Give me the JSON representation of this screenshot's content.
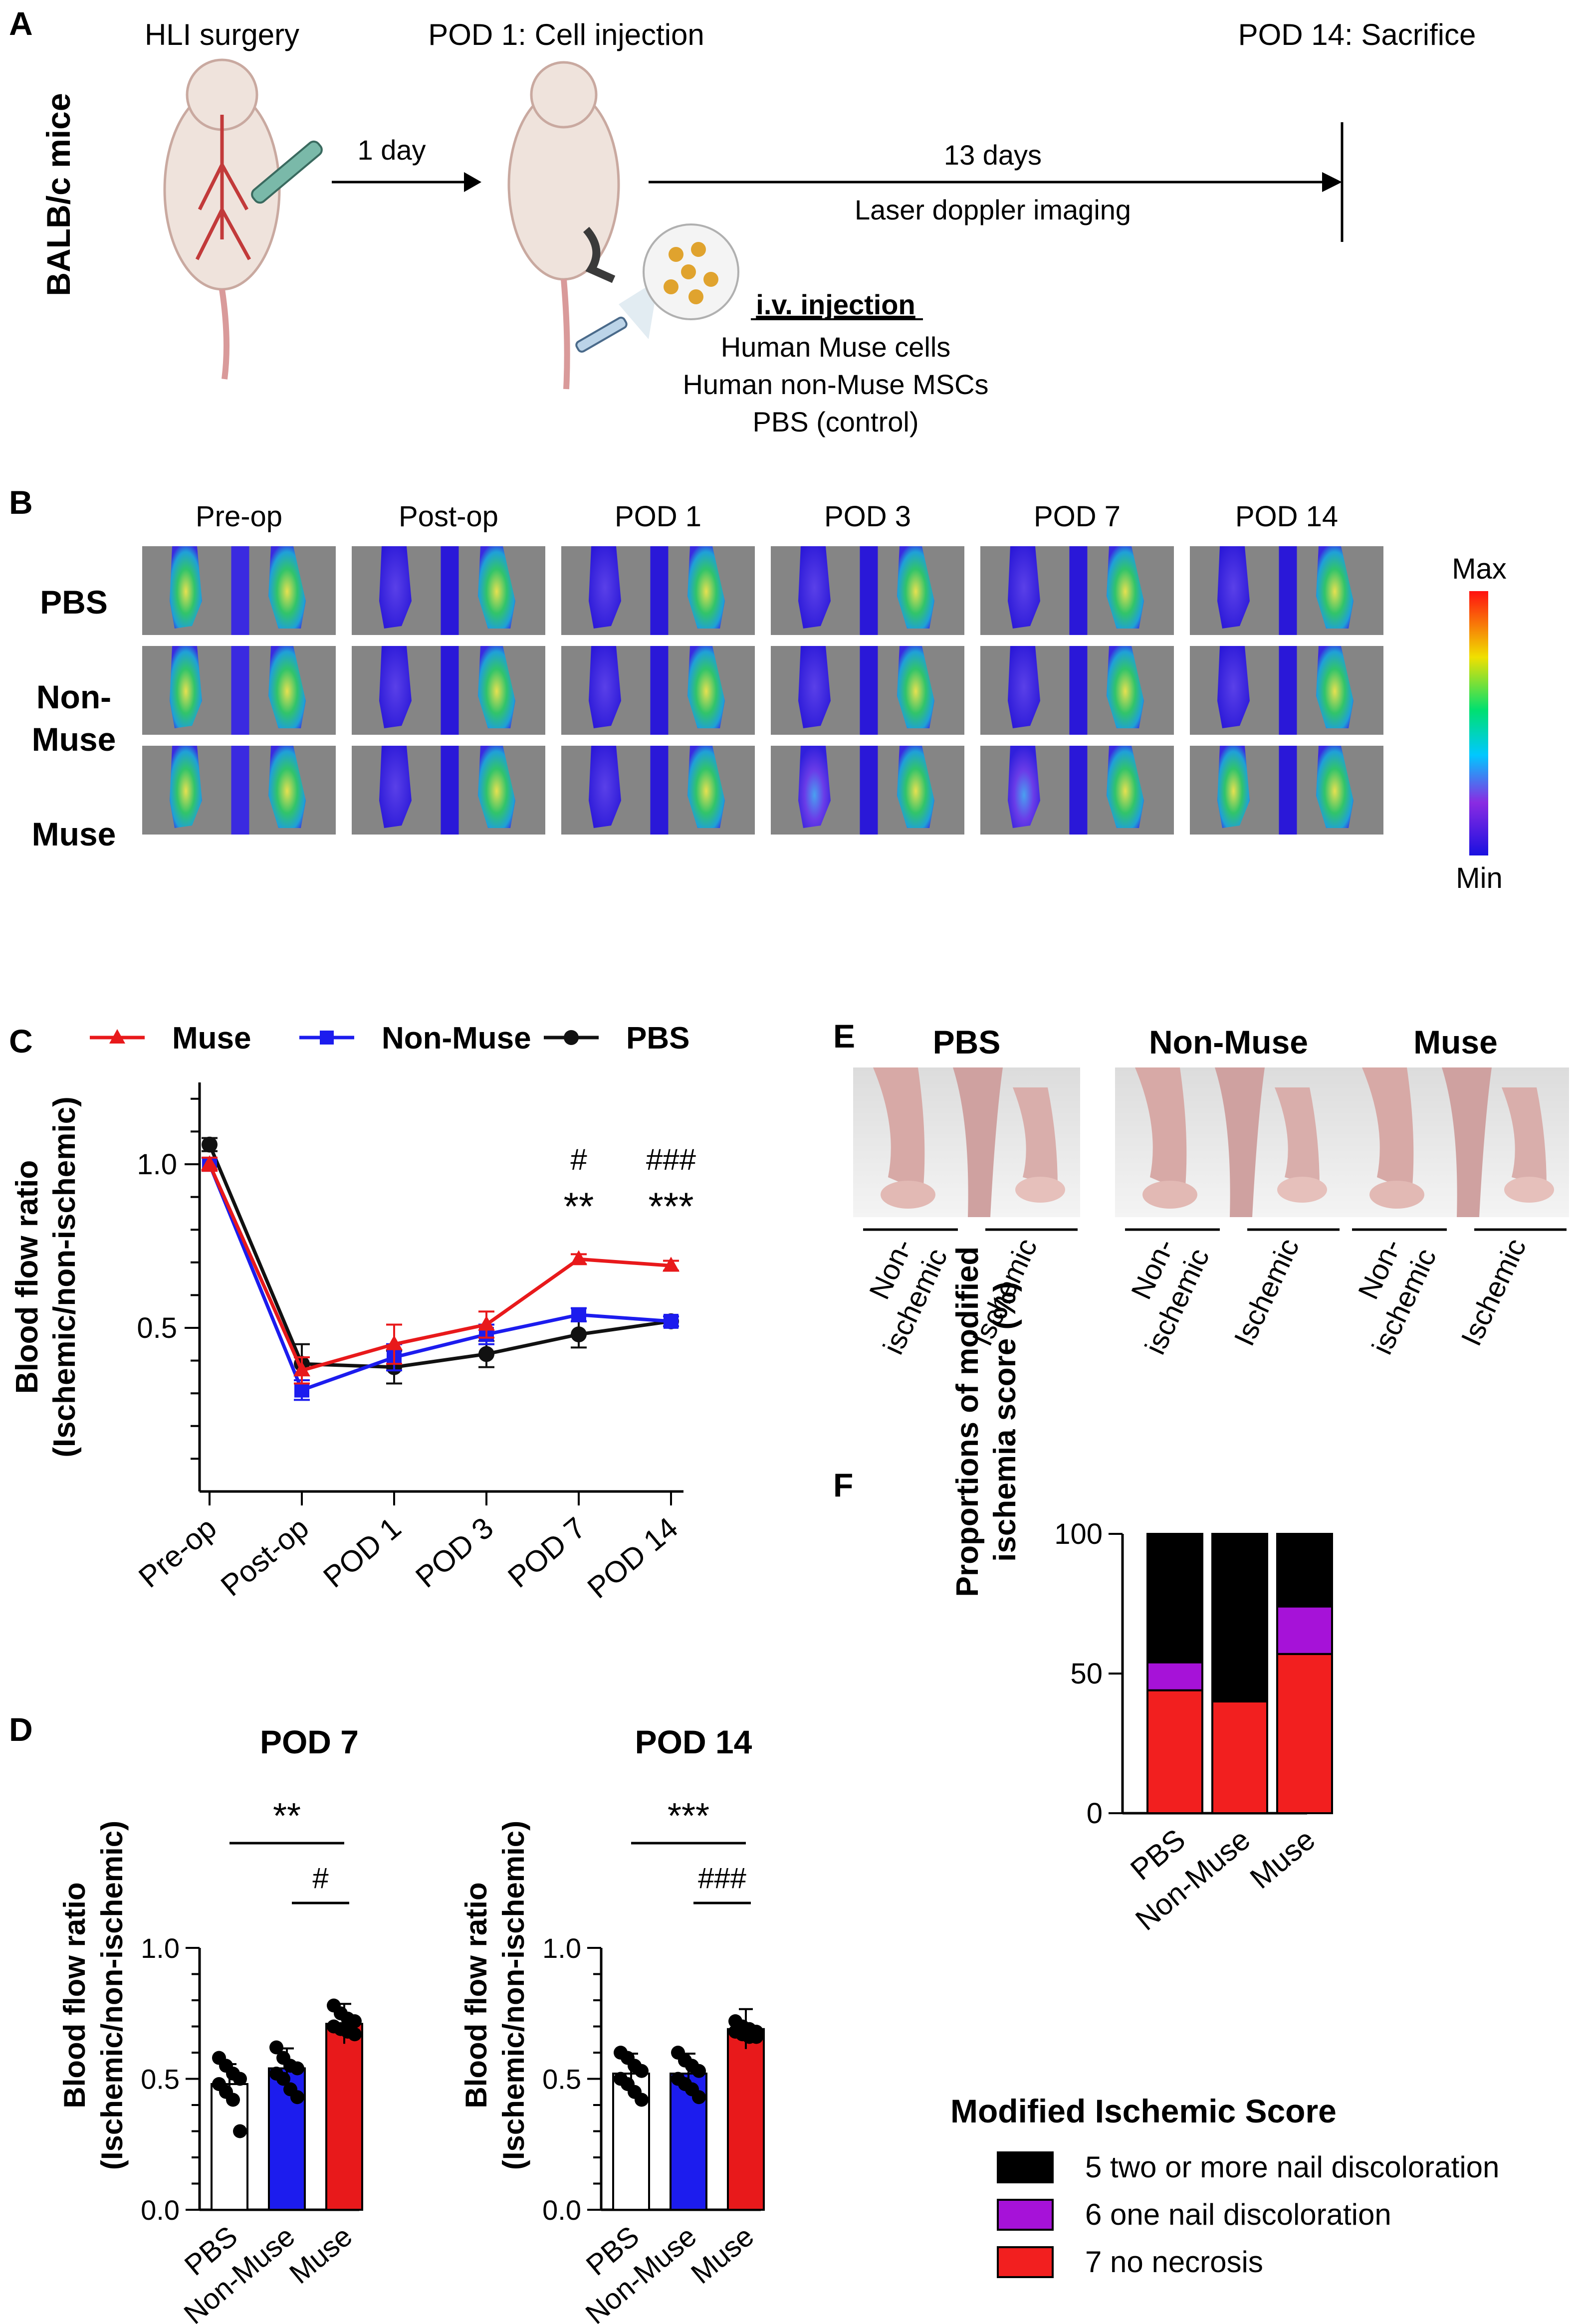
{
  "panelA": {
    "label": "A",
    "mice": "BALB/c mice",
    "steps": [
      "HLI surgery",
      "POD 1: Cell injection",
      "POD 14: Sacrifice"
    ],
    "interval1": "1 day",
    "interval2": "13 days",
    "imaging": "Laser doppler imaging",
    "injection_title": "i.v. injection",
    "injection_items": [
      "Human Muse cells",
      "Human non-Muse MSCs",
      "PBS (control)"
    ]
  },
  "panelB": {
    "label": "B",
    "columns": [
      "Pre-op",
      "Post-op",
      "POD 1",
      "POD 3",
      "POD 7",
      "POD 14"
    ],
    "rows": [
      "PBS",
      "Non-",
      "Muse",
      "Muse"
    ],
    "scale_max": "Max",
    "scale_min": "Min",
    "colors": {
      "low": "#2a1fe0",
      "mid": "#31c46a",
      "high": "#e8d43a",
      "bg": "#858585"
    }
  },
  "panelC": {
    "label": "C",
    "chart_data": {
      "type": "line",
      "categories": [
        "Pre-op",
        "Post-op",
        "POD 1",
        "POD 3",
        "POD 7",
        "POD 14"
      ],
      "ylabel_1": "Blood flow ratio",
      "ylabel_2": "(Ischemic/non-ischemic)",
      "ylim": [
        0,
        1.25
      ],
      "yticks": [
        "0.5",
        "1.0"
      ],
      "series": [
        {
          "name": "Muse",
          "color": "#e8191b",
          "values": [
            1.0,
            0.37,
            0.45,
            0.51,
            0.71,
            0.69
          ],
          "err": [
            0.02,
            0.04,
            0.06,
            0.04,
            0.015,
            0.015
          ]
        },
        {
          "name": "Non-Muse",
          "color": "#1c1cee",
          "values": [
            1.0,
            0.31,
            0.41,
            0.48,
            0.54,
            0.52
          ],
          "err": [
            0.02,
            0.03,
            0.04,
            0.03,
            0.02,
            0.015
          ]
        },
        {
          "name": "PBS",
          "color": "#111111",
          "values": [
            1.06,
            0.39,
            0.38,
            0.42,
            0.48,
            0.52
          ],
          "err": [
            0.02,
            0.06,
            0.05,
            0.04,
            0.04,
            0.015
          ]
        }
      ],
      "annotations": [
        {
          "category": "POD 7",
          "hash": "#",
          "stars": "**"
        },
        {
          "category": "POD 14",
          "hash": "###",
          "stars": "***"
        }
      ]
    }
  },
  "panelD": {
    "label": "D",
    "chart_data": [
      {
        "type": "bar",
        "title": "POD 7",
        "categories": [
          "PBS",
          "Non-Muse",
          "Muse"
        ],
        "values": [
          0.48,
          0.54,
          0.71
        ],
        "colors": [
          "#ffffff",
          "#1c1cee",
          "#e8191b"
        ],
        "points": [
          [
            0.58,
            0.55,
            0.52,
            0.5,
            0.48,
            0.45,
            0.42,
            0.3
          ],
          [
            0.62,
            0.58,
            0.55,
            0.54,
            0.52,
            0.5,
            0.46,
            0.43
          ],
          [
            0.78,
            0.75,
            0.73,
            0.72,
            0.7,
            0.69,
            0.68,
            0.67
          ]
        ],
        "ylabel_1": "Blood flow ratio",
        "ylabel_2": "(Ischemic/non-ischemic)",
        "ylim": [
          0,
          1.0
        ],
        "yticks": [
          "0.0",
          "0.5",
          "1.0"
        ],
        "sig": [
          {
            "text": "**",
            "from": 0,
            "to": 2
          },
          {
            "text": "#",
            "from": 1,
            "to": 2
          }
        ]
      },
      {
        "type": "bar",
        "title": "POD 14",
        "categories": [
          "PBS",
          "Non-Muse",
          "Muse"
        ],
        "values": [
          0.52,
          0.52,
          0.69
        ],
        "colors": [
          "#ffffff",
          "#1c1cee",
          "#e8191b"
        ],
        "points": [
          [
            0.6,
            0.58,
            0.55,
            0.53,
            0.5,
            0.48,
            0.45,
            0.42
          ],
          [
            0.6,
            0.57,
            0.55,
            0.53,
            0.5,
            0.48,
            0.46,
            0.43
          ],
          [
            0.72,
            0.7,
            0.69,
            0.68,
            0.68,
            0.67,
            0.66,
            0.66
          ]
        ],
        "ylabel_1": "Blood flow ratio",
        "ylabel_2": "(Ischemic/non-ischemic)",
        "ylim": [
          0,
          1.0
        ],
        "yticks": [
          "0.0",
          "0.5",
          "1.0"
        ],
        "sig": [
          {
            "text": "***",
            "from": 0,
            "to": 2
          },
          {
            "text": "###",
            "from": 1,
            "to": 2
          }
        ]
      }
    ]
  },
  "panelE": {
    "label": "E",
    "groups": [
      "PBS",
      "Non-Muse",
      "Muse"
    ],
    "limb_labels": [
      "Non-",
      "ischemic",
      "Ischemic"
    ]
  },
  "panelF": {
    "label": "F",
    "chart_data": {
      "type": "bar",
      "stacked": true,
      "categories": [
        "PBS",
        "Non-Muse",
        "Muse"
      ],
      "ylabel_1": "Proportions of modified",
      "ylabel_2": "ischemia score (%)",
      "ylim": [
        0,
        100
      ],
      "yticks": [
        "0",
        "50",
        "100"
      ],
      "series": [
        {
          "name": "7  no necrosis",
          "color": "#f21f1f",
          "values": [
            44,
            40,
            57
          ]
        },
        {
          "name": "6  one nail discoloration",
          "color": "#a612d8",
          "values": [
            10,
            0,
            17
          ]
        },
        {
          "name": "5  two or more nail discoloration",
          "color": "#000000",
          "values": [
            46,
            60,
            26
          ]
        }
      ]
    },
    "legend_title": "Modified Ischemic Score",
    "legend": [
      {
        "label": "5  two or more nail discoloration",
        "color": "#000000"
      },
      {
        "label": "6  one nail discoloration",
        "color": "#a612d8"
      },
      {
        "label": "7  no necrosis",
        "color": "#f21f1f"
      }
    ]
  }
}
